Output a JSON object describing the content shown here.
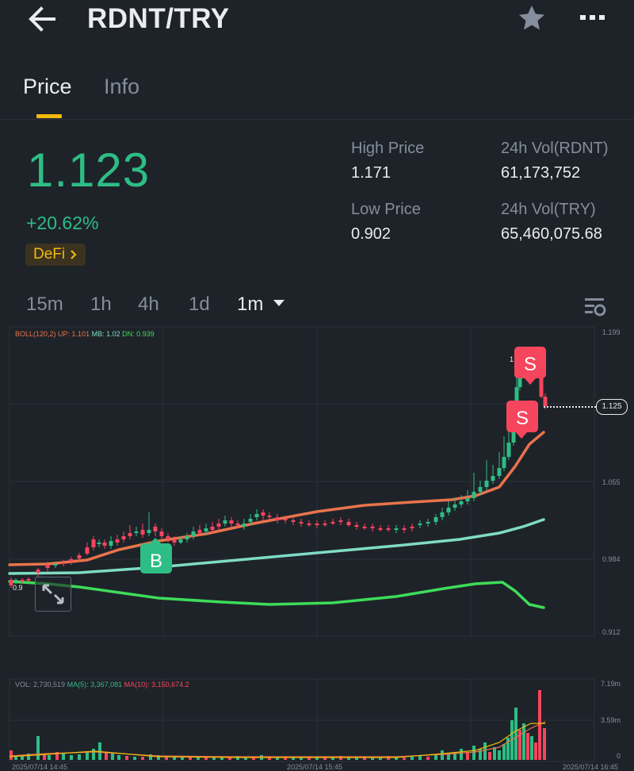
{
  "header": {
    "title": "RDNT/TRY"
  },
  "tabs": [
    {
      "label": "Price"
    },
    {
      "label": "Info"
    }
  ],
  "ticker": {
    "last_price": "1.123",
    "change_pct": "+20.62%",
    "tag": "DeFi"
  },
  "stats": {
    "high_label": "High Price",
    "high_value": "1.171",
    "low_label": "Low Price",
    "low_value": "0.902",
    "vol_base_label": "24h Vol(RDNT)",
    "vol_base_value": "61,173,752",
    "vol_quote_label": "24h Vol(TRY)",
    "vol_quote_value": "65,460,075.68"
  },
  "intervals": [
    "15m",
    "1h",
    "4h",
    "1d",
    "1m"
  ],
  "active_interval": "1m",
  "colors": {
    "up": "#2ebd85",
    "down": "#f6465d",
    "accent": "#f0b90b",
    "upper_band": "#e8744c",
    "mid_band": "#7fdcc4",
    "lower_band": "#3ddc59"
  },
  "chart": {
    "boll_legend": {
      "name": "BOLL(120,2)",
      "up": "UP: 1.101",
      "mb": "MB: 1.02",
      "dn": "DN: 0.939"
    },
    "price_axis": [
      "1.199",
      "1.055",
      "0.984",
      "0.912"
    ],
    "current_price_label": "1.125",
    "high_marker": "1.17",
    "low_marker": "0.9",
    "markers": [
      {
        "label": "B"
      },
      {
        "label": "S"
      },
      {
        "label": "S"
      }
    ],
    "vol_legend": {
      "vol": "VOL: 2,730,519",
      "ma5": "MA(5): 3,367,081",
      "ma10": "MA(10): 3,150,674.2"
    },
    "vol_axis": [
      "7.19m",
      "3.59m",
      "0"
    ],
    "time_axis": [
      "2025/07/14 14:45",
      "2025/07/14 15:45",
      "2025/07/14 16:45"
    ]
  },
  "chart_data": {
    "type": "candlestick",
    "x_range": [
      "2025/07/14 14:15",
      "2025/07/14 17:45"
    ],
    "ylim": [
      0.912,
      1.199
    ],
    "bollinger": {
      "upper_last": 1.101,
      "middle_last": 1.02,
      "lower_last": 0.939
    },
    "volume_ylim": [
      0,
      7190000
    ],
    "last_close": 1.125,
    "volume_last": 2730519,
    "ma5_last": 3367081,
    "ma10_last": 3150674.2
  }
}
